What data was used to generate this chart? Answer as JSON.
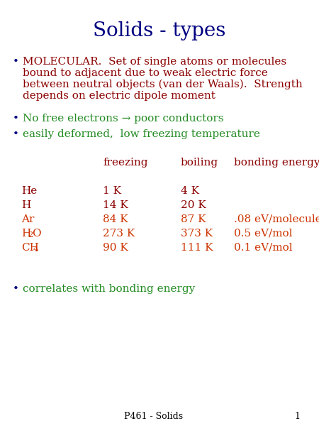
{
  "title": "Solids - types",
  "title_color": "#000080",
  "title_fontsize": 20,
  "background_color": "#ffffff",
  "bullet_color": "#000080",
  "bullet_symbol": "•",
  "text_color_dark_red": "#8B0000",
  "text_color_orange_red": "#cc3300",
  "text_color_green": "#228B22",
  "footer_text": "P461 - Solids",
  "footer_number": "1",
  "footer_fontsize": 9,
  "main_fontsize": 11,
  "table_fontsize": 11
}
